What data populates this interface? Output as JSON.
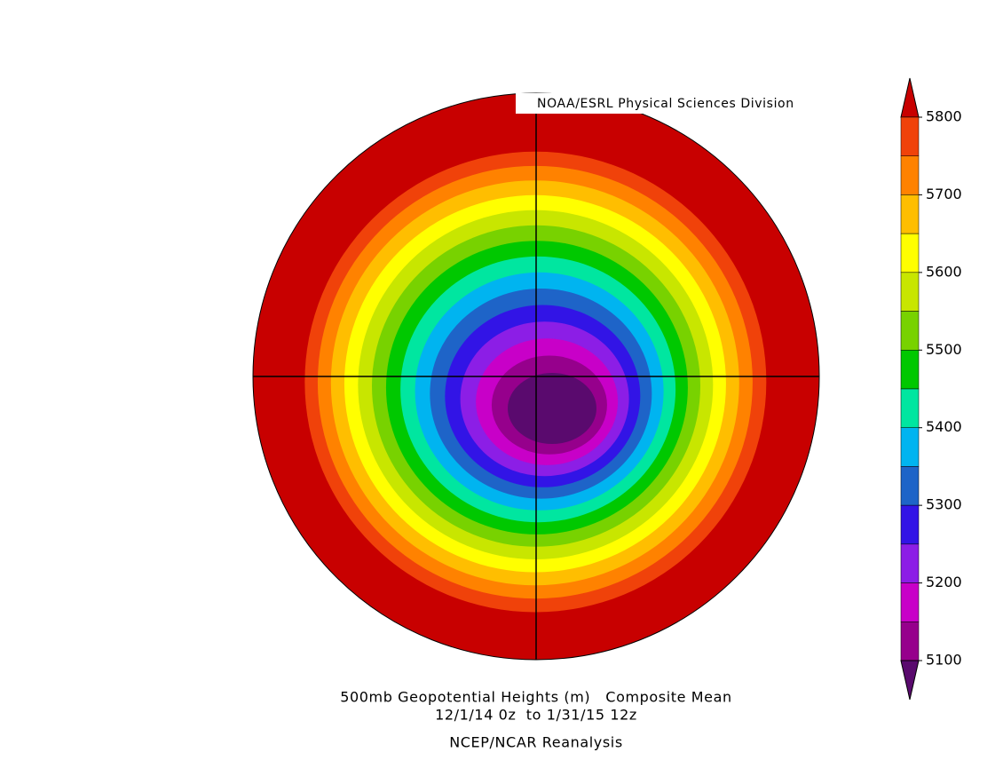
{
  "header": {
    "credit": "NOAA/ESRL Physical Sciences Division"
  },
  "colorbar": {
    "ticks": [
      5800,
      5700,
      5600,
      5500,
      5400,
      5300,
      5200,
      5100
    ],
    "colors": [
      "#c80000",
      "#f0420a",
      "#ff8200",
      "#ffbe00",
      "#ffff00",
      "#c8e600",
      "#78d200",
      "#00c800",
      "#00e6a0",
      "#00b4f0",
      "#1e64c8",
      "#3214e6",
      "#8c1ee6",
      "#c800c8",
      "#96008c",
      "#5a0a6e"
    ]
  },
  "caption": {
    "line1": "500mb Geopotential Heights (m)   Composite Mean",
    "line2": "12/1/14 0z  to 1/31/15 12z",
    "source": "NCEP/NCAR Reanalysis"
  }
}
